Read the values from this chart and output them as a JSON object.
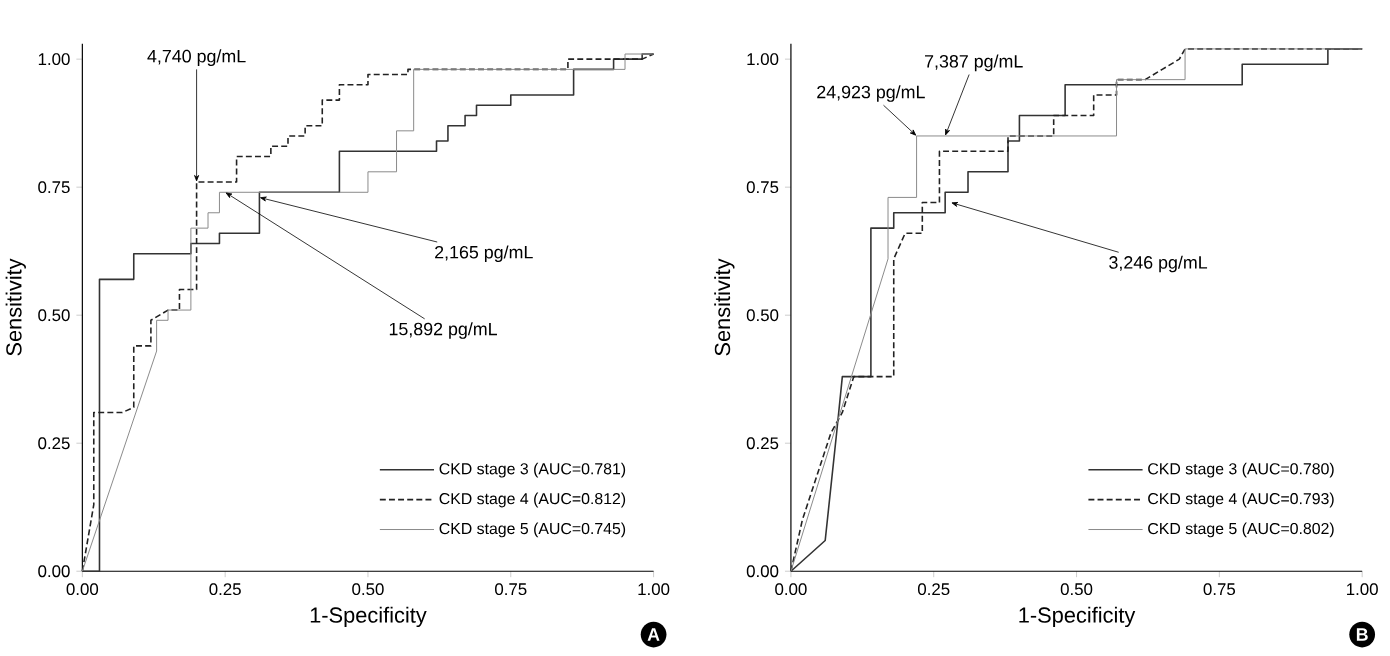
{
  "chart_data": [
    {
      "type": "line",
      "xlabel": "1-Specificity",
      "ylabel": "Sensitivity",
      "xlim": [
        0,
        1
      ],
      "ylim": [
        0,
        1.03
      ],
      "xticks": [
        {
          "value": 0,
          "label": "0.00"
        },
        {
          "value": 0.25,
          "label": "0.25"
        },
        {
          "value": 0.5,
          "label": "0.50"
        },
        {
          "value": 0.75,
          "label": "0.75"
        },
        {
          "value": 1,
          "label": "1.00"
        }
      ],
      "yticks": [
        {
          "value": 0,
          "label": "0.00"
        },
        {
          "value": 0.25,
          "label": "0.25"
        },
        {
          "value": 0.5,
          "label": "0.50"
        },
        {
          "value": 0.75,
          "label": "0.75"
        },
        {
          "value": 1,
          "label": "1.00"
        }
      ],
      "legend": "bottom right",
      "grid": false,
      "series": [
        {
          "name": "CKD stage 3 (AUC=0.781)",
          "color": "#333333",
          "line_style": "solid",
          "x": [
            0,
            0.03,
            0.03,
            0.09,
            0.09,
            0.19,
            0.19,
            0.24,
            0.24,
            0.31,
            0.31,
            0.45,
            0.45,
            0.62,
            0.62,
            0.64,
            0.64,
            0.67,
            0.67,
            0.69,
            0.69,
            0.75,
            0.75,
            0.86,
            0.86,
            0.93,
            0.93,
            0.98,
            0.98,
            1.0
          ],
          "values": [
            0,
            0,
            0.57,
            0.57,
            0.62,
            0.62,
            0.64,
            0.64,
            0.66,
            0.66,
            0.74,
            0.74,
            0.82,
            0.82,
            0.84,
            0.84,
            0.87,
            0.87,
            0.89,
            0.89,
            0.91,
            0.91,
            0.93,
            0.93,
            0.98,
            0.98,
            1.0,
            1.0,
            1.01,
            1.01
          ]
        },
        {
          "name": "CKD stage 4 (AUC=0.812)",
          "color": "#222222",
          "line_style": "dashed",
          "x": [
            0,
            0.02,
            0.02,
            0.07,
            0.09,
            0.09,
            0.12,
            0.12,
            0.15,
            0.17,
            0.17,
            0.19,
            0.2,
            0.2,
            0.27,
            0.27,
            0.33,
            0.33,
            0.36,
            0.36,
            0.39,
            0.39,
            0.42,
            0.42,
            0.45,
            0.45,
            0.5,
            0.5,
            0.57,
            0.57,
            0.85,
            0.85,
            0.98,
            1.0
          ],
          "values": [
            0,
            0.13,
            0.31,
            0.31,
            0.32,
            0.44,
            0.44,
            0.49,
            0.51,
            0.51,
            0.55,
            0.55,
            0.55,
            0.76,
            0.76,
            0.81,
            0.81,
            0.83,
            0.83,
            0.85,
            0.85,
            0.87,
            0.87,
            0.92,
            0.92,
            0.95,
            0.95,
            0.97,
            0.97,
            0.98,
            0.98,
            1.0,
            1.0,
            1.01
          ]
        },
        {
          "name": "CKD stage 5 (AUC=0.745)",
          "color": "#8a8a8a",
          "line_style": "solid",
          "x": [
            0,
            0.13,
            0.13,
            0.15,
            0.15,
            0.19,
            0.19,
            0.22,
            0.22,
            0.24,
            0.24,
            0.5,
            0.5,
            0.55,
            0.55,
            0.58,
            0.58,
            0.65,
            0.65,
            0.95,
            0.95,
            1.0
          ],
          "values": [
            0,
            0.43,
            0.49,
            0.49,
            0.51,
            0.51,
            0.67,
            0.67,
            0.7,
            0.7,
            0.74,
            0.74,
            0.78,
            0.78,
            0.86,
            0.86,
            0.98,
            0.98,
            0.98,
            0.98,
            1.01,
            1.01
          ]
        }
      ],
      "annotations": [
        {
          "text": "4,740 pg/mL",
          "x": 0.2,
          "y": 0.76
        },
        {
          "text": "2,165 pg/mL",
          "x": 0.31,
          "y": 0.73
        },
        {
          "text": "15,892 pg/mL",
          "x": 0.25,
          "y": 0.74
        },
        "A"
      ]
    },
    {
      "type": "line",
      "xlabel": "1-Specificity",
      "ylabel": "Sensitivity",
      "xlim": [
        0,
        1
      ],
      "ylim": [
        0,
        1.03
      ],
      "xticks": [
        {
          "value": 0,
          "label": "0.00"
        },
        {
          "value": 0.25,
          "label": "0.25"
        },
        {
          "value": 0.5,
          "label": "0.50"
        },
        {
          "value": 0.75,
          "label": "0.75"
        },
        {
          "value": 1,
          "label": "1.00"
        }
      ],
      "yticks": [
        {
          "value": 0,
          "label": "0.00"
        },
        {
          "value": 0.25,
          "label": "0.25"
        },
        {
          "value": 0.5,
          "label": "0.50"
        },
        {
          "value": 0.75,
          "label": "0.75"
        },
        {
          "value": 1,
          "label": "1.00"
        }
      ],
      "legend": "bottom right",
      "grid": false,
      "series": [
        {
          "name": "CKD stage 3 (AUC=0.780)",
          "color": "#333333",
          "line_style": "solid",
          "x": [
            0,
            0.06,
            0.08,
            0.09,
            0.14,
            0.14,
            0.18,
            0.18,
            0.27,
            0.27,
            0.31,
            0.31,
            0.38,
            0.38,
            0.4,
            0.4,
            0.48,
            0.48,
            0.79,
            0.79,
            0.94,
            0.94,
            1.0
          ],
          "values": [
            0,
            0.06,
            0.27,
            0.38,
            0.38,
            0.67,
            0.67,
            0.7,
            0.7,
            0.74,
            0.74,
            0.78,
            0.78,
            0.84,
            0.84,
            0.89,
            0.89,
            0.95,
            0.95,
            0.99,
            0.99,
            1.02,
            1.02
          ]
        },
        {
          "name": "CKD stage 4 (AUC=0.793)",
          "color": "#222222",
          "line_style": "dashed",
          "x": [
            0,
            0.02,
            0.07,
            0.09,
            0.11,
            0.18,
            0.18,
            0.2,
            0.23,
            0.23,
            0.26,
            0.26,
            0.38,
            0.38,
            0.46,
            0.46,
            0.53,
            0.53,
            0.57,
            0.57,
            0.62,
            0.65,
            0.68,
            0.69,
            1.0
          ],
          "values": [
            0,
            0.1,
            0.27,
            0.31,
            0.38,
            0.38,
            0.61,
            0.66,
            0.66,
            0.72,
            0.72,
            0.82,
            0.82,
            0.85,
            0.85,
            0.89,
            0.89,
            0.93,
            0.93,
            0.96,
            0.96,
            0.98,
            1.0,
            1.02,
            1.02
          ]
        },
        {
          "name": "CKD stage 5 (AUC=0.802)",
          "color": "#8a8a8a",
          "line_style": "solid",
          "x": [
            0,
            0.17,
            0.17,
            0.22,
            0.22,
            0.57,
            0.57,
            0.69,
            0.69,
            1.0
          ],
          "values": [
            0,
            0.61,
            0.73,
            0.73,
            0.85,
            0.85,
            0.96,
            0.96,
            1.02,
            1.02
          ]
        }
      ],
      "annotations": [
        {
          "text": "7,387 pg/mL",
          "x": 0.27,
          "y": 0.85
        },
        {
          "text": "24,923 pg/mL",
          "x": 0.22,
          "y": 0.85
        },
        {
          "text": "3,246 pg/mL",
          "x": 0.28,
          "y": 0.72
        },
        "B"
      ]
    }
  ]
}
